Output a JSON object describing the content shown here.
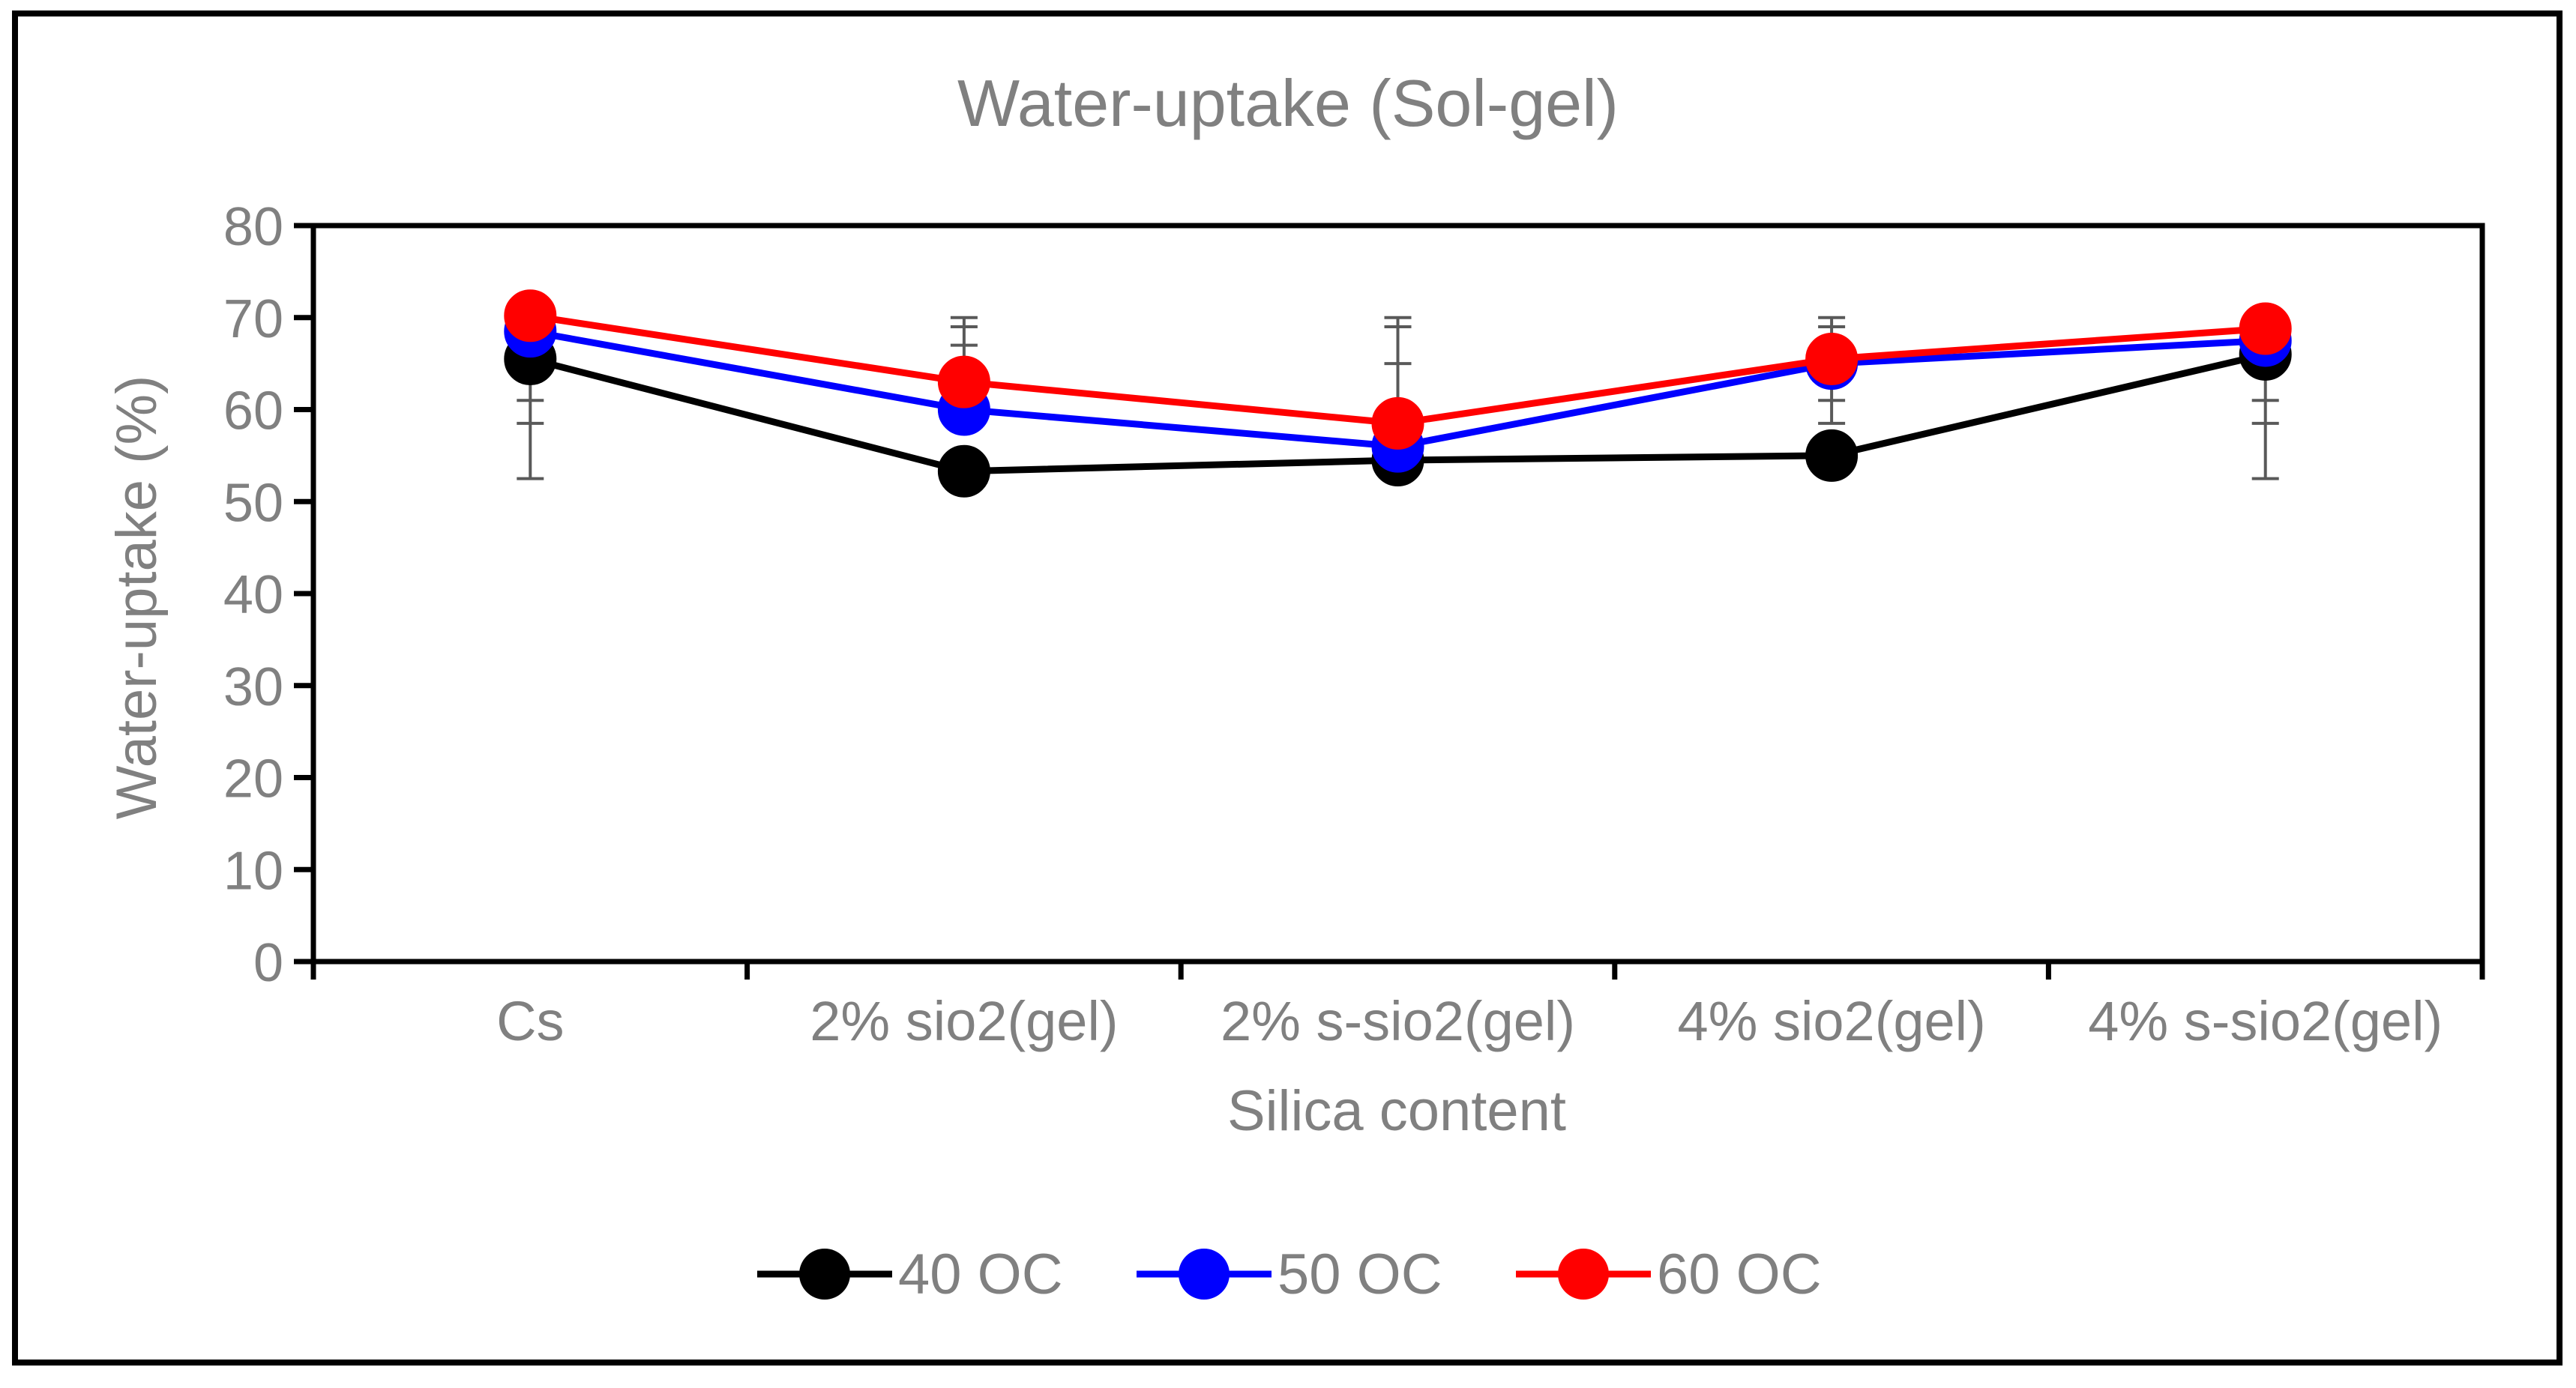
{
  "chart_data": {
    "type": "line",
    "title": "Water-uptake (Sol-gel)",
    "xlabel": "Silica content",
    "ylabel": "Water-uptake (%)",
    "ylim": [
      0,
      80
    ],
    "yticks": [
      "0",
      "10",
      "20",
      "30",
      "40",
      "50",
      "60",
      "70",
      "80"
    ],
    "categories": [
      "Cs",
      "2% sio2(gel)",
      "2% s-sio2(gel)",
      "4% sio2(gel)",
      "4% s-sio2(gel)"
    ],
    "series": [
      {
        "name": "40 OC",
        "color": "#000000",
        "values": [
          65.5,
          53.3,
          54.5,
          55.0,
          66.0
        ]
      },
      {
        "name": "50 OC",
        "color": "#0000FF",
        "values": [
          68.5,
          60.0,
          56.0,
          65.0,
          67.5
        ]
      },
      {
        "name": "60 OC",
        "color": "#FF0000",
        "values": [
          70.2,
          63.0,
          58.5,
          65.5,
          68.8
        ]
      }
    ],
    "error_bars": [
      {
        "category": "Cs",
        "low": 52.5,
        "high": 65.5,
        "caps": [
          58.5,
          61.0
        ]
      },
      {
        "category": "2% sio2(gel)",
        "low": 60.0,
        "high": 70.0,
        "caps": [
          67.0,
          69.0
        ]
      },
      {
        "category": "2% s-sio2(gel)",
        "low": 52.5,
        "high": 70.0,
        "caps": [
          65.0,
          69.0
        ]
      },
      {
        "category": "4% sio2(gel)",
        "low": 58.5,
        "high": 70.0,
        "caps": [
          61.0,
          69.0
        ]
      },
      {
        "category": "4% s-sio2(gel)",
        "low": 52.5,
        "high": 66.0,
        "caps": [
          58.5,
          61.0
        ]
      }
    ],
    "error_bar_color": "#595959",
    "grid": false,
    "legend_position": "bottom"
  }
}
